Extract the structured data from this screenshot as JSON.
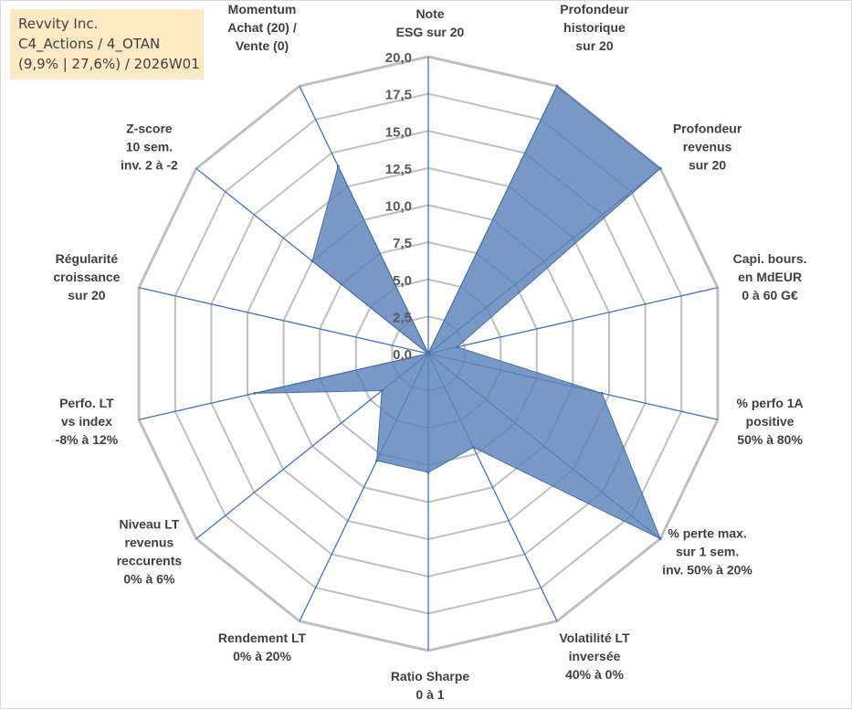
{
  "info": {
    "company": "Revvity Inc.",
    "portfolio": "C4_Actions / 4_OTAN",
    "stats": "(9,9% | 27,6%) / 2026W01"
  },
  "colors": {
    "grid": "#bfbfbf",
    "spoke": "#4472c4",
    "fill": "#5a82b8",
    "stroke": "#4a6fa5",
    "background": "#ffffff",
    "info_bg": "#fde9c4"
  },
  "chart_data": {
    "type": "radar",
    "title": "",
    "axis_range": [
      0,
      20
    ],
    "ticks": [
      "0,0",
      "2,5",
      "5,0",
      "7,5",
      "10,0",
      "12,5",
      "15,0",
      "17,5",
      "20,0"
    ],
    "categories": [
      [
        "Note",
        "ESG sur 20"
      ],
      [
        "Profondeur",
        "historique",
        "sur 20"
      ],
      [
        "Profondeur",
        "revenus",
        "sur 20"
      ],
      [
        "Capi. bours.",
        "en MdEUR",
        "0 à 60 G€"
      ],
      [
        "% perfo 1A",
        "positive",
        "50% à 80%"
      ],
      [
        "% perte max.",
        "sur 1 sem.",
        "inv. 50% à 20%"
      ],
      [
        "Volatilité LT",
        "inversée",
        "40% à 0%"
      ],
      [
        "Ratio Sharpe",
        "0 à 1"
      ],
      [
        "Rendement LT",
        "0% à 20%"
      ],
      [
        "Niveau LT",
        "revenus",
        "reccurents",
        "0% à 6%"
      ],
      [
        "Perfo. LT",
        "vs index",
        "-8% à 12%"
      ],
      [
        "Régularité",
        "croissance",
        "sur 20"
      ],
      [
        "Z-score",
        "10 sem.",
        "inv. 2 à -2"
      ],
      [
        "Momentum",
        "Achat (20) /",
        "Vente (0)"
      ]
    ],
    "series": [
      {
        "name": "Revvity Inc.",
        "values": [
          0,
          20,
          20,
          2,
          12,
          20,
          7,
          8,
          8,
          4,
          12,
          0,
          10,
          14
        ]
      }
    ]
  }
}
